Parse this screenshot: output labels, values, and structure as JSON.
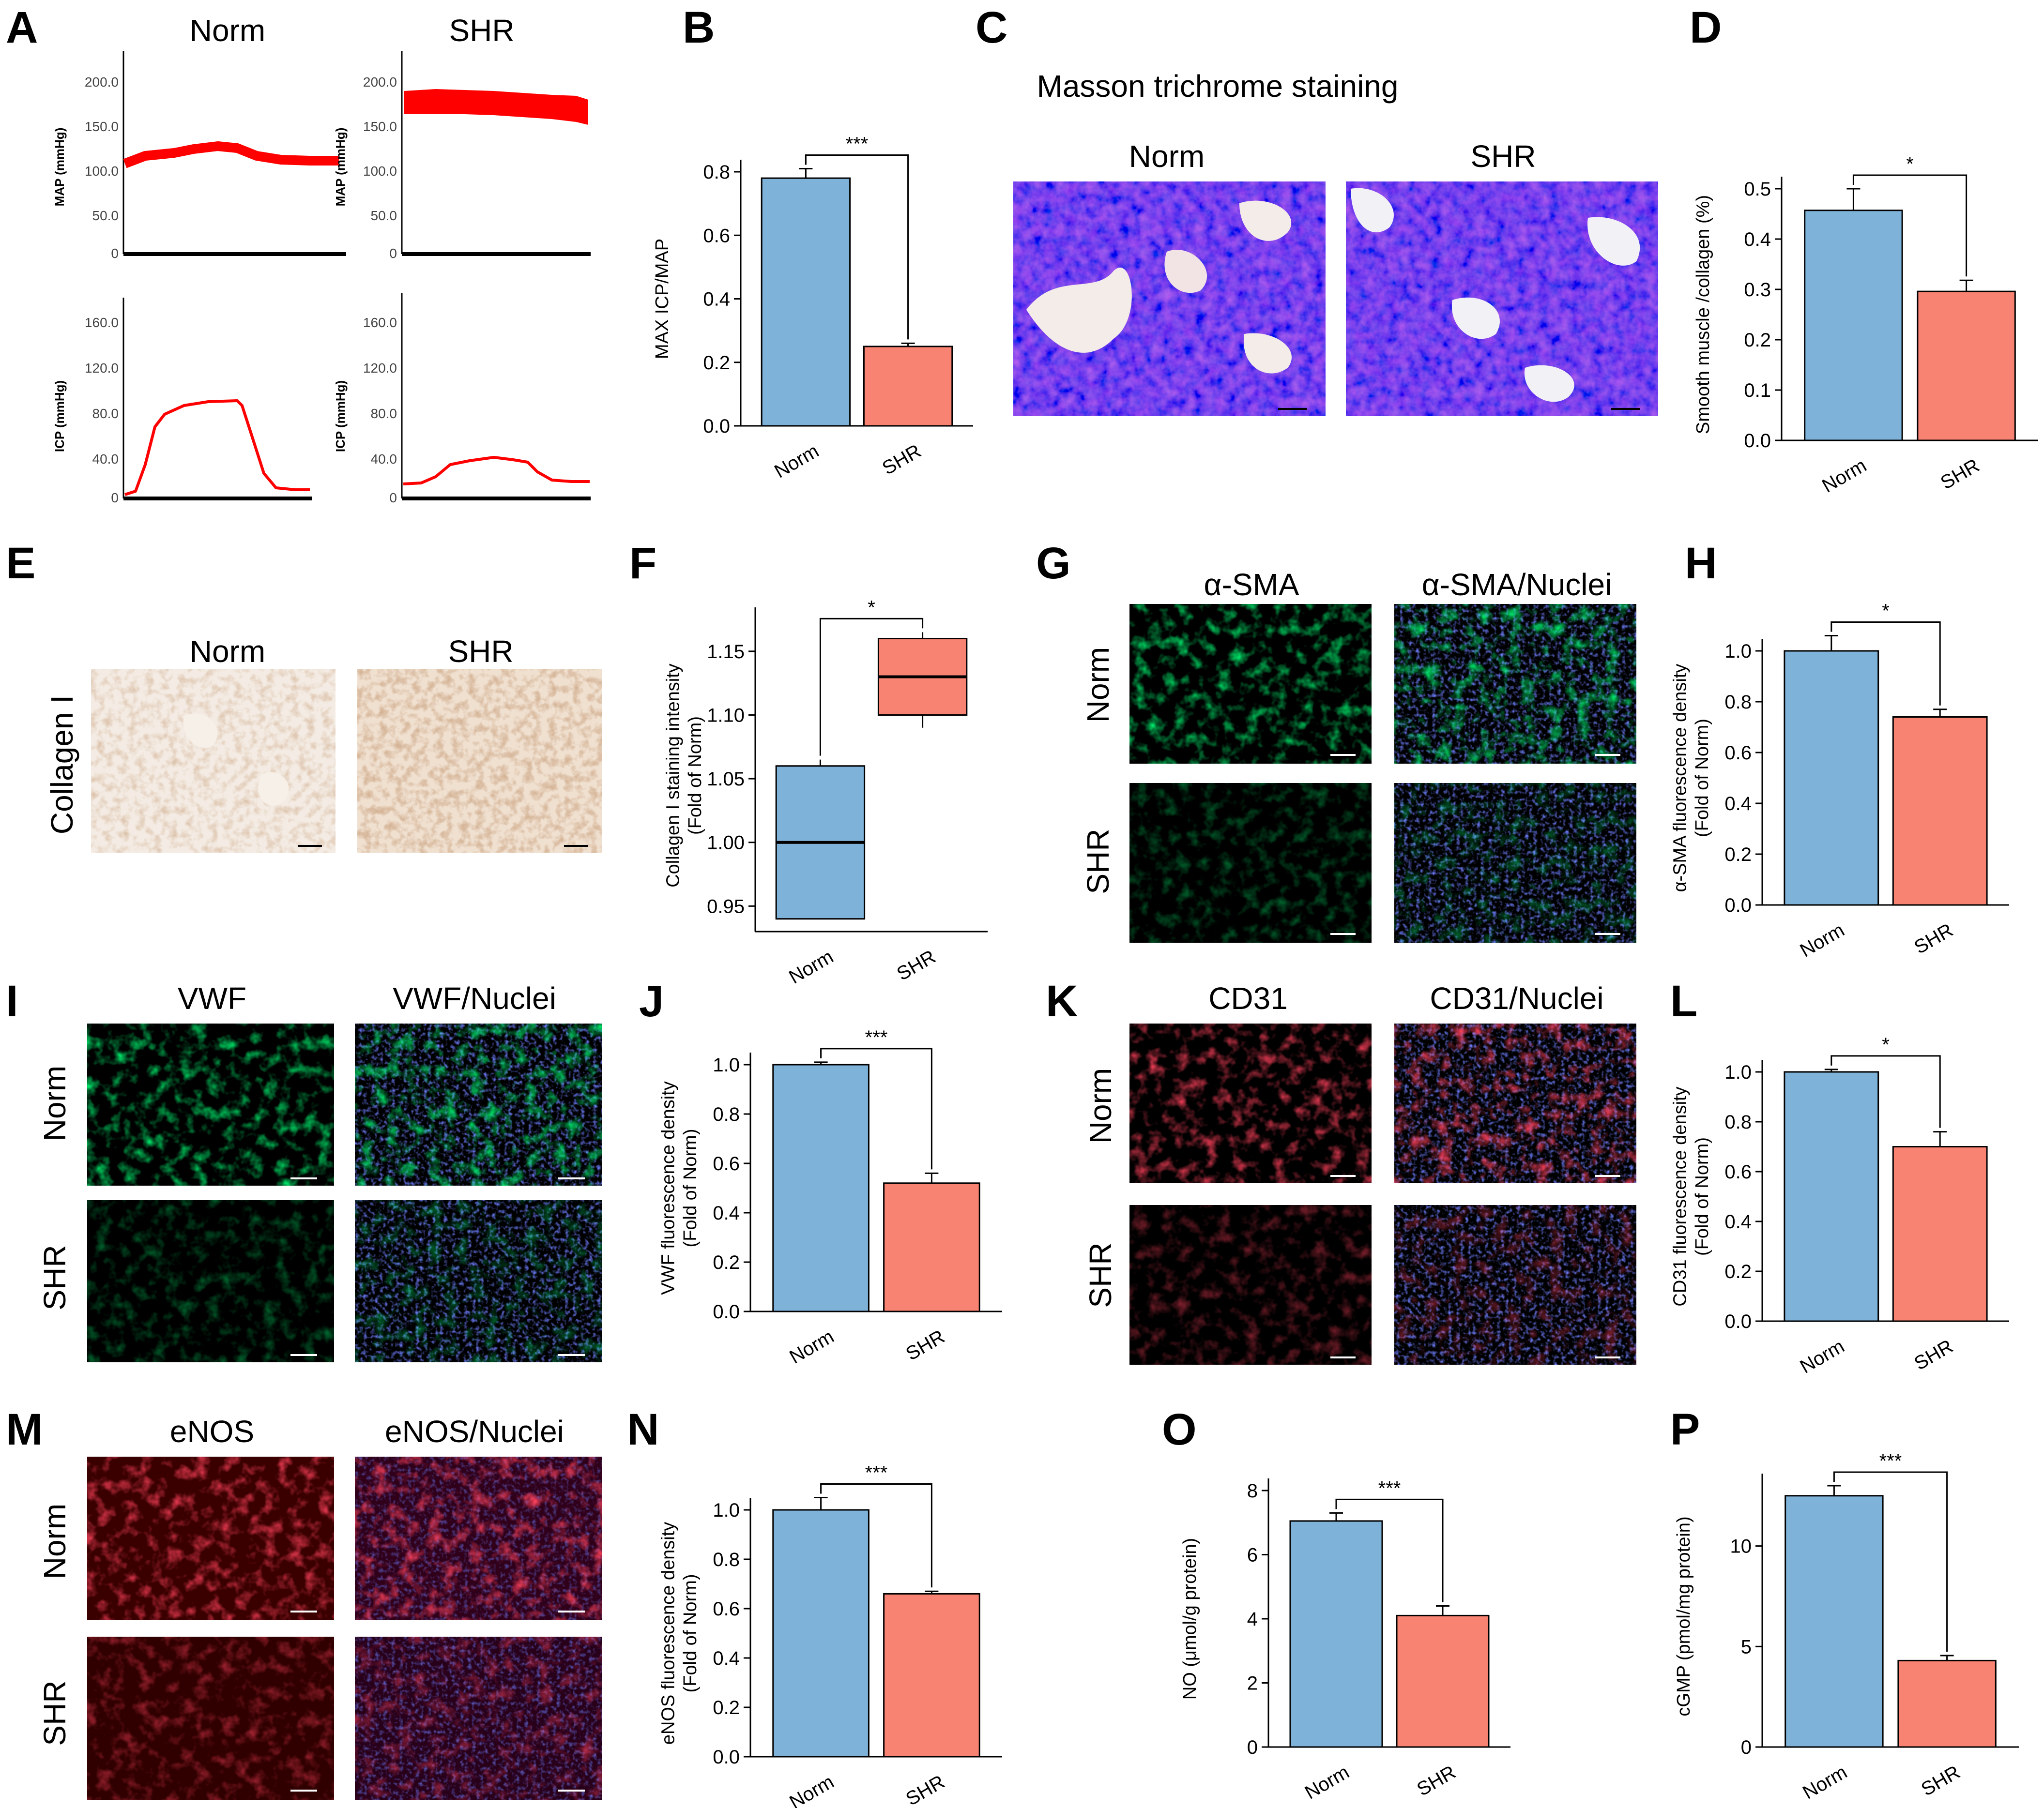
{
  "figure": {
    "panel_letters": [
      "A",
      "B",
      "C",
      "D",
      "E",
      "F",
      "G",
      "H",
      "I",
      "J",
      "K",
      "L",
      "M",
      "N",
      "O",
      "P"
    ],
    "colors": {
      "norm": "#7fb2d8",
      "shr": "#f98373",
      "trace": "#ff0000",
      "axis": "#000000"
    },
    "panel_A": {
      "col_headers": [
        "Norm",
        "SHR"
      ],
      "map_ylabel": "MAP (mmHg)",
      "icp_ylabel": "ICP (mmHg)",
      "map_ticks": [
        "200.0",
        "150.0",
        "100.0",
        "50.0",
        "0"
      ],
      "icp_ticks": [
        "160.0",
        "120.0",
        "80.0",
        "40.0",
        "0"
      ]
    },
    "panel_C": {
      "title": "Masson trichrome staining",
      "col_headers": [
        "Norm",
        "SHR"
      ]
    },
    "panel_E": {
      "row_label": "Collagen I",
      "col_headers": [
        "Norm",
        "SHR"
      ]
    },
    "panel_G": {
      "col_headers": [
        "α-SMA",
        "α-SMA/Nuclei"
      ],
      "row_labels": [
        "Norm",
        "SHR"
      ]
    },
    "panel_I": {
      "col_headers": [
        "VWF",
        "VWF/Nuclei"
      ],
      "row_labels": [
        "Norm",
        "SHR"
      ]
    },
    "panel_K": {
      "col_headers": [
        "CD31",
        "CD31/Nuclei"
      ],
      "row_labels": [
        "Norm",
        "SHR"
      ]
    },
    "panel_M": {
      "col_headers": [
        "eNOS",
        "eNOS/Nuclei"
      ],
      "row_labels": [
        "Norm",
        "SHR"
      ]
    }
  },
  "chart_data": [
    {
      "panel": "B",
      "type": "bar",
      "categories": [
        "Norm",
        "SHR"
      ],
      "values": [
        0.78,
        0.25
      ],
      "errors": [
        0.03,
        0.01
      ],
      "ylabel": "MAX ICP/MAP",
      "ylim": [
        0,
        0.8
      ],
      "yticks": [
        "0.0",
        "0.2",
        "0.4",
        "0.6",
        "0.8"
      ],
      "significance": "***"
    },
    {
      "panel": "D",
      "type": "bar",
      "categories": [
        "Norm",
        "SHR"
      ],
      "values": [
        0.457,
        0.296
      ],
      "errors": [
        0.043,
        0.022
      ],
      "ylabel": "Smooth muscle /collagen (%)",
      "ylim": [
        0,
        0.5
      ],
      "yticks": [
        "0.0",
        "0.1",
        "0.2",
        "0.3",
        "0.4",
        "0.5"
      ],
      "significance": "*"
    },
    {
      "panel": "F",
      "type": "box",
      "categories": [
        "Norm",
        "SHR"
      ],
      "boxes": [
        {
          "whisker_low": 0.94,
          "q1": 0.94,
          "median": 1.0,
          "q3": 1.06,
          "whisker_high": 1.065
        },
        {
          "whisker_low": 1.09,
          "q1": 1.1,
          "median": 1.13,
          "q3": 1.16,
          "whisker_high": 1.165
        }
      ],
      "ylabel": "Collagen I staining intensity (Fold of Norm)",
      "ylim": [
        0.93,
        1.175
      ],
      "yticks": [
        "0.95",
        "1.00",
        "1.05",
        "1.10",
        "1.15"
      ],
      "significance": "*"
    },
    {
      "panel": "H",
      "type": "bar",
      "categories": [
        "Norm",
        "SHR"
      ],
      "values": [
        1.0,
        0.74
      ],
      "errors": [
        0.06,
        0.03
      ],
      "ylabel": "α-SMA fluorescence density (Fold of Norm)",
      "ylim": [
        0,
        1.0
      ],
      "yticks": [
        "0.0",
        "0.2",
        "0.4",
        "0.6",
        "0.8",
        "1.0"
      ],
      "significance": "*"
    },
    {
      "panel": "J",
      "type": "bar",
      "categories": [
        "Norm",
        "SHR"
      ],
      "values": [
        1.0,
        0.52
      ],
      "errors": [
        0.01,
        0.04
      ],
      "ylabel": "VWF fluorescence density (Fold of Norm)",
      "ylim": [
        0,
        1.0
      ],
      "yticks": [
        "0.0",
        "0.2",
        "0.4",
        "0.6",
        "0.8",
        "1.0"
      ],
      "significance": "***"
    },
    {
      "panel": "L",
      "type": "bar",
      "categories": [
        "Norm",
        "SHR"
      ],
      "values": [
        1.0,
        0.7
      ],
      "errors": [
        0.01,
        0.06
      ],
      "ylabel": "CD31 fluorescence density (Fold of Norm)",
      "ylim": [
        0,
        1.0
      ],
      "yticks": [
        "0.0",
        "0.2",
        "0.4",
        "0.6",
        "0.8",
        "1.0"
      ],
      "significance": "*"
    },
    {
      "panel": "N",
      "type": "bar",
      "categories": [
        "Norm",
        "SHR"
      ],
      "values": [
        1.0,
        0.66
      ],
      "errors": [
        0.05,
        0.01
      ],
      "ylabel": "eNOS fluorescence density (Fold of Norm)",
      "ylim": [
        0,
        1.0
      ],
      "yticks": [
        "0.0",
        "0.2",
        "0.4",
        "0.6",
        "0.8",
        "1.0"
      ],
      "significance": "***"
    },
    {
      "panel": "O",
      "type": "bar",
      "categories": [
        "Norm",
        "SHR"
      ],
      "values": [
        7.05,
        4.1
      ],
      "errors": [
        0.25,
        0.3
      ],
      "ylabel": "NO (μmol/g protein)",
      "ylim": [
        0,
        8
      ],
      "yticks": [
        "0",
        "2",
        "4",
        "6",
        "8"
      ],
      "significance": "***"
    },
    {
      "panel": "P",
      "type": "bar",
      "categories": [
        "Norm",
        "SHR"
      ],
      "values": [
        12.5,
        4.3
      ],
      "errors": [
        0.5,
        0.25
      ],
      "ylabel": "cGMP (pmol/mg protein)",
      "ylim": [
        0,
        13
      ],
      "yticks": [
        "0",
        "5",
        "10"
      ],
      "significance": "***"
    }
  ]
}
